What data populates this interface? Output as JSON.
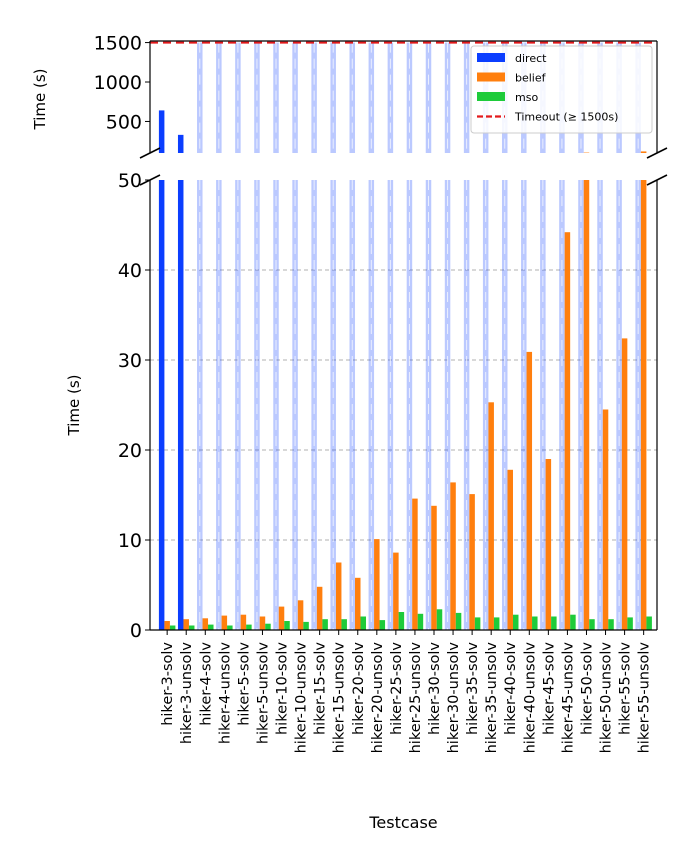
{
  "chart_data": {
    "type": "bar",
    "broken_axis": true,
    "ylabel": "Time (s)",
    "xlabel": "Testcase",
    "top_panel": {
      "ylim": [
        100,
        1520
      ],
      "yticks": [
        500,
        1000,
        1500
      ]
    },
    "bottom_panel": {
      "ylim": [
        0,
        50
      ],
      "yticks": [
        0,
        10,
        20,
        30,
        40,
        50
      ],
      "grid": true
    },
    "categories": [
      "hiker-3-solv",
      "hiker-3-unsolv",
      "hiker-4-solv",
      "hiker-4-unsolv",
      "hiker-5-solv",
      "hiker-5-unsolv",
      "hiker-10-solv",
      "hiker-10-unsolv",
      "hiker-15-solv",
      "hiker-15-unsolv",
      "hiker-20-solv",
      "hiker-20-unsolv",
      "hiker-25-solv",
      "hiker-25-unsolv",
      "hiker-30-solv",
      "hiker-30-unsolv",
      "hiker-35-solv",
      "hiker-35-unsolv",
      "hiker-40-solv",
      "hiker-40-unsolv",
      "hiker-45-solv",
      "hiker-45-unsolv",
      "hiker-50-solv",
      "hiker-50-unsolv",
      "hiker-55-solv",
      "hiker-55-unsolv"
    ],
    "series": [
      {
        "name": "direct",
        "color": "#0b3eff",
        "values": [
          640,
          330,
          1500,
          1500,
          1500,
          1500,
          1500,
          1500,
          1500,
          1500,
          1500,
          1500,
          1500,
          1500,
          1500,
          1500,
          1500,
          1500,
          1500,
          1500,
          1500,
          1500,
          1500,
          1500,
          1500,
          1500
        ],
        "timeout": [
          false,
          false,
          true,
          true,
          true,
          true,
          true,
          true,
          true,
          true,
          true,
          true,
          true,
          true,
          true,
          true,
          true,
          true,
          true,
          true,
          true,
          true,
          true,
          true,
          true,
          true
        ]
      },
      {
        "name": "belief",
        "color": "#ff7f0e",
        "values": [
          1.0,
          1.2,
          1.3,
          1.6,
          1.7,
          1.5,
          2.6,
          3.3,
          4.8,
          7.5,
          5.8,
          10.1,
          8.6,
          14.6,
          13.8,
          16.4,
          15.1,
          25.3,
          17.8,
          30.9,
          19.0,
          44.2,
          105,
          24.5,
          32.4,
          120
        ]
      },
      {
        "name": "mso",
        "color": "#1ecb3a",
        "values": [
          0.5,
          0.5,
          0.6,
          0.5,
          0.6,
          0.7,
          1.0,
          0.9,
          1.2,
          1.2,
          1.5,
          1.1,
          2.0,
          1.8,
          2.3,
          1.9,
          1.4,
          1.4,
          1.7,
          1.5,
          1.5,
          1.7,
          1.2,
          1.2,
          1.4,
          1.5
        ]
      }
    ],
    "timeout_line": {
      "value": 1500,
      "label": "Timeout (≥ 1500s)",
      "color": "#e31a1c"
    },
    "legend": {
      "position": "top-right",
      "entries": [
        "direct",
        "belief",
        "mso",
        "Timeout (≥ 1500s)"
      ]
    }
  }
}
